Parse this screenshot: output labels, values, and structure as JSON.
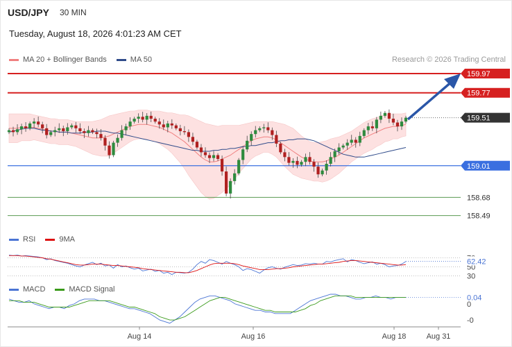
{
  "header": {
    "symbol": "USD/JPY",
    "timeframe": "30 MIN",
    "datetime": "Tuesday, August 18, 2026 4:01:23 AM CET",
    "credit": "Research © 2026 Trading Central"
  },
  "legends": {
    "price": [
      {
        "label": "MA 20 + Bollinger Bands",
        "color": "#f08080"
      },
      {
        "label": "MA 50",
        "color": "#2f4b8a"
      }
    ],
    "rsi": [
      {
        "label": "RSI",
        "color": "#4a74d4"
      },
      {
        "label": "9MA",
        "color": "#dd1111"
      }
    ],
    "macd": [
      {
        "label": "MACD",
        "color": "#4a74d4"
      },
      {
        "label": "MACD Signal",
        "color": "#3a9a1a"
      }
    ]
  },
  "colors": {
    "resistance": "#d62020",
    "support_blue": "#3a6fe0",
    "support_green": "#5a9a50",
    "bull": "#2e8b3e",
    "bear": "#b02020",
    "band_fill": "#fde1e1",
    "arrow": "#2a56a8",
    "current_tag": "#333333"
  },
  "chart_data": {
    "type": "candlestick",
    "symbol": "USD/JPY",
    "price_axis": {
      "min": 158.35,
      "max": 160.05
    },
    "x_axis_ticks": [
      "Aug 14",
      "Aug 16",
      "Aug 18",
      "Aug 31"
    ],
    "levels": [
      {
        "value": 159.97,
        "label": "159.97",
        "style": "resistance"
      },
      {
        "value": 159.77,
        "label": "159.77",
        "style": "resistance"
      },
      {
        "value": 159.51,
        "label": "159.51",
        "style": "current"
      },
      {
        "value": 159.01,
        "label": "159.01",
        "style": "support_blue"
      },
      {
        "value": 158.68,
        "label": "158.68",
        "style": "support_green"
      },
      {
        "value": 158.49,
        "label": "158.49",
        "style": "support_green"
      }
    ],
    "current_price": 159.51,
    "close_series": [
      159.38,
      159.36,
      159.39,
      159.42,
      159.4,
      159.45,
      159.47,
      159.44,
      159.4,
      159.33,
      159.36,
      159.38,
      159.4,
      159.37,
      159.41,
      159.43,
      159.4,
      159.37,
      159.35,
      159.38,
      159.36,
      159.34,
      159.3,
      159.22,
      159.12,
      159.25,
      159.3,
      159.38,
      159.42,
      159.47,
      159.5,
      159.52,
      159.49,
      159.53,
      159.5,
      159.47,
      159.44,
      159.41,
      159.45,
      159.43,
      159.4,
      159.37,
      159.36,
      159.31,
      159.26,
      159.2,
      159.15,
      159.12,
      159.09,
      159.12,
      159.08,
      158.95,
      158.72,
      158.85,
      158.93,
      159.07,
      159.18,
      159.27,
      159.34,
      159.38,
      159.4,
      159.41,
      159.38,
      159.33,
      159.24,
      159.15,
      159.1,
      159.04,
      159.06,
      159.02,
      159.05,
      159.1,
      159.05,
      159.0,
      158.92,
      158.96,
      159.03,
      159.1,
      159.16,
      159.2,
      159.22,
      159.25,
      159.28,
      159.25,
      159.32,
      159.38,
      159.42,
      159.4,
      159.49,
      159.53,
      159.56,
      159.5,
      159.46,
      159.42,
      159.47,
      159.51
    ],
    "ma50_series": [
      159.36,
      159.37,
      159.38,
      159.39,
      159.4,
      159.4,
      159.4,
      159.39,
      159.38,
      159.38,
      159.37,
      159.37,
      159.36,
      159.36,
      159.36,
      159.35,
      159.35,
      159.35,
      159.36,
      159.36,
      159.36,
      159.37,
      159.37,
      159.37,
      159.36,
      159.35,
      159.35,
      159.34,
      159.33,
      159.32,
      159.31,
      159.3,
      159.29,
      159.28,
      159.27,
      159.26,
      159.25,
      159.24,
      159.23,
      159.22,
      159.21,
      159.2,
      159.19,
      159.18,
      159.17,
      159.17,
      159.16,
      159.16,
      159.16,
      159.17,
      159.17,
      159.18,
      159.18,
      159.19,
      159.19,
      159.2,
      159.21,
      159.21,
      159.22,
      159.22,
      159.23,
      159.24,
      159.25,
      159.25,
      159.26,
      159.27,
      159.27,
      159.28,
      159.28,
      159.29,
      159.29,
      159.29,
      159.28,
      159.27,
      159.25,
      159.23,
      159.21,
      159.19,
      159.17,
      159.15,
      159.13,
      159.12,
      159.11,
      159.1,
      159.1,
      159.1,
      159.11,
      159.12,
      159.13,
      159.14,
      159.15,
      159.16,
      159.17,
      159.18,
      159.19,
      159.2
    ],
    "ma20_series": [
      159.4,
      159.4,
      159.4,
      159.41,
      159.41,
      159.41,
      159.41,
      159.4,
      159.39,
      159.38,
      159.37,
      159.37,
      159.36,
      159.36,
      159.36,
      159.35,
      159.34,
      159.33,
      159.32,
      159.31,
      159.3,
      159.3,
      159.3,
      159.31,
      159.32,
      159.34,
      159.36,
      159.38,
      159.4,
      159.42,
      159.43,
      159.44,
      159.44,
      159.44,
      159.43,
      159.42,
      159.41,
      159.39,
      159.37,
      159.35,
      159.32,
      159.29,
      159.26,
      159.22,
      159.18,
      159.14,
      159.1,
      159.07,
      159.05,
      159.05,
      159.06,
      159.08,
      159.1,
      159.12,
      159.15,
      159.18,
      159.21,
      159.24,
      159.27,
      159.29,
      159.3,
      159.31,
      159.31,
      159.3,
      159.28,
      159.25,
      159.22,
      159.19,
      159.16,
      159.13,
      159.1,
      159.08,
      159.06,
      159.05,
      159.05,
      159.05,
      159.06,
      159.08,
      159.1,
      159.12,
      159.15,
      159.18,
      159.21,
      159.24,
      159.27,
      159.3,
      159.32,
      159.34,
      159.36,
      159.38,
      159.4,
      159.41,
      159.42,
      159.42,
      159.43,
      159.44
    ],
    "bb_width_series": [
      0.15,
      0.15,
      0.15,
      0.14,
      0.14,
      0.14,
      0.13,
      0.13,
      0.13,
      0.13,
      0.13,
      0.13,
      0.13,
      0.13,
      0.13,
      0.13,
      0.13,
      0.14,
      0.15,
      0.16,
      0.17,
      0.18,
      0.19,
      0.2,
      0.21,
      0.2,
      0.19,
      0.18,
      0.17,
      0.16,
      0.15,
      0.15,
      0.15,
      0.15,
      0.15,
      0.16,
      0.17,
      0.18,
      0.19,
      0.21,
      0.23,
      0.25,
      0.28,
      0.31,
      0.33,
      0.35,
      0.37,
      0.38,
      0.39,
      0.38,
      0.36,
      0.35,
      0.33,
      0.31,
      0.28,
      0.25,
      0.23,
      0.21,
      0.19,
      0.18,
      0.17,
      0.16,
      0.16,
      0.17,
      0.18,
      0.2,
      0.22,
      0.23,
      0.24,
      0.23,
      0.22,
      0.21,
      0.2,
      0.2,
      0.2,
      0.21,
      0.21,
      0.21,
      0.2,
      0.19,
      0.18,
      0.17,
      0.16,
      0.16,
      0.16,
      0.16,
      0.16,
      0.16,
      0.15,
      0.15,
      0.14,
      0.14,
      0.13,
      0.13,
      0.12,
      0.12
    ],
    "rsi": {
      "value": 62.42,
      "value_label": "62.42",
      "ticks": [
        {
          "value": 70,
          "label": "70"
        },
        {
          "value": 50,
          "label": "50"
        },
        {
          "value": 30,
          "label": "30"
        }
      ],
      "range": [
        20,
        100
      ],
      "rsi_series": [
        76,
        75,
        76,
        74,
        75,
        74,
        73,
        72,
        70,
        66,
        68,
        64,
        62,
        60,
        58,
        55,
        52,
        50,
        54,
        57,
        60,
        55,
        58,
        52,
        54,
        47,
        55,
        50,
        52,
        48,
        45,
        47,
        41,
        43,
        45,
        40,
        42,
        36,
        38,
        33,
        38,
        37,
        36,
        38,
        45,
        55,
        62,
        58,
        66,
        64,
        60,
        56,
        62,
        58,
        55,
        50,
        42,
        46,
        44,
        40,
        36,
        43,
        48,
        50,
        47,
        45,
        49,
        52,
        55,
        53,
        54,
        57,
        56,
        58,
        56,
        56,
        62,
        61,
        64,
        66,
        68,
        61,
        66,
        64,
        60,
        57,
        59,
        61,
        56,
        58,
        55,
        50,
        52,
        53,
        56,
        62
      ],
      "ma_series": [
        75,
        75,
        75,
        74,
        74,
        73,
        72,
        71,
        70,
        68,
        67,
        65,
        63,
        61,
        59,
        57,
        55,
        54,
        54,
        55,
        56,
        56,
        56,
        55,
        54,
        53,
        53,
        52,
        51,
        50,
        49,
        48,
        46,
        45,
        44,
        43,
        42,
        41,
        40,
        39,
        38,
        38,
        37,
        37,
        39,
        42,
        46,
        50,
        54,
        57,
        58,
        58,
        58,
        58,
        57,
        55,
        52,
        50,
        48,
        46,
        44,
        44,
        44,
        45,
        46,
        46,
        47,
        48,
        50,
        51,
        52,
        53,
        54,
        55,
        56,
        56,
        57,
        58,
        59,
        60,
        62,
        63,
        64,
        64,
        63,
        62,
        61,
        60,
        59,
        58,
        57,
        56,
        55,
        54,
        54,
        55
      ]
    },
    "macd": {
      "value": 0.04,
      "value_label": "0.04",
      "ticks": [
        {
          "value": 0,
          "label": "0"
        },
        {
          "value": -0.1,
          "label": "-0"
        }
      ],
      "range": [
        -0.13,
        0.06
      ],
      "macd_series": [
        0.03,
        0.02,
        0.01,
        0.01,
        0.02,
        0.0,
        -0.01,
        -0.02,
        -0.03,
        -0.02,
        -0.02,
        -0.03,
        -0.01,
        0.0,
        0.02,
        0.03,
        0.03,
        0.03,
        0.02,
        0.02,
        0.01,
        0.0,
        -0.01,
        -0.02,
        -0.03,
        -0.03,
        -0.04,
        -0.05,
        -0.06,
        -0.08,
        -0.1,
        -0.11,
        -0.12,
        -0.1,
        -0.08,
        -0.05,
        -0.02,
        0.01,
        0.03,
        0.04,
        0.05,
        0.05,
        0.04,
        0.03,
        0.02,
        0.0,
        -0.01,
        -0.02,
        -0.03,
        -0.04,
        -0.04,
        -0.05,
        -0.05,
        -0.06,
        -0.06,
        -0.06,
        -0.06,
        -0.04,
        -0.02,
        0.0,
        0.02,
        0.03,
        0.04,
        0.05,
        0.06,
        0.06,
        0.05,
        0.05,
        0.04,
        0.03,
        0.03,
        0.04,
        0.04,
        0.05,
        0.04,
        0.04,
        0.03,
        0.04,
        0.04,
        0.04
      ],
      "signal_series": [
        0.02,
        0.02,
        0.02,
        0.01,
        0.01,
        0.01,
        0.0,
        -0.01,
        -0.02,
        -0.02,
        -0.02,
        -0.02,
        -0.02,
        -0.01,
        0.0,
        0.01,
        0.02,
        0.02,
        0.02,
        0.02,
        0.02,
        0.01,
        0.0,
        -0.01,
        -0.02,
        -0.02,
        -0.03,
        -0.04,
        -0.05,
        -0.06,
        -0.08,
        -0.09,
        -0.1,
        -0.1,
        -0.09,
        -0.08,
        -0.06,
        -0.04,
        -0.02,
        0.0,
        0.02,
        0.03,
        0.04,
        0.04,
        0.03,
        0.02,
        0.01,
        0.0,
        -0.01,
        -0.02,
        -0.03,
        -0.04,
        -0.04,
        -0.05,
        -0.05,
        -0.05,
        -0.05,
        -0.05,
        -0.04,
        -0.03,
        -0.01,
        0.0,
        0.02,
        0.03,
        0.04,
        0.05,
        0.05,
        0.05,
        0.05,
        0.04,
        0.04,
        0.04,
        0.04,
        0.04,
        0.04,
        0.04,
        0.04,
        0.04,
        0.04,
        0.04
      ]
    }
  }
}
